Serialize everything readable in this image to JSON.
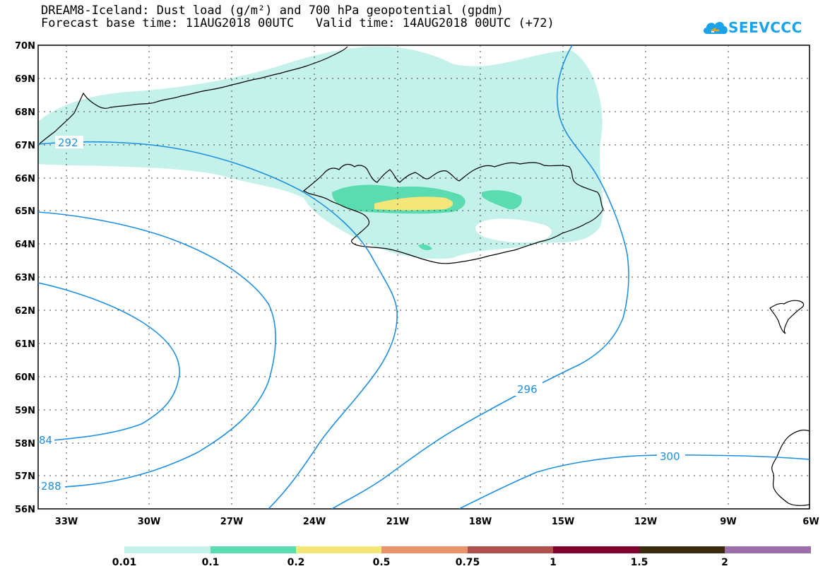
{
  "title": {
    "line1": "DREAM8-Iceland: Dust load (g/m²) and 700 hPa geopotential (gpdm)",
    "line2": "Forecast base time: 11AUG2018 00UTC   Valid time: 14AUG2018 00UTC (+72)"
  },
  "logo": {
    "text": "SEEVCCC",
    "icon": "cloud-icon"
  },
  "axes": {
    "lat_labels": [
      "70N",
      "69N",
      "68N",
      "67N",
      "66N",
      "65N",
      "64N",
      "63N",
      "62N",
      "61N",
      "60N",
      "59N",
      "58N",
      "57N",
      "56N"
    ],
    "lon_labels": [
      "33W",
      "30W",
      "27W",
      "24W",
      "21W",
      "18W",
      "15W",
      "12W",
      "9W",
      "6W"
    ]
  },
  "contours": {
    "labels": [
      "292",
      "296",
      "300",
      "288",
      "84"
    ]
  },
  "legend": {
    "labels": [
      "0.01",
      "0.1",
      "0.2",
      "0.5",
      "0.75",
      "1",
      "1.5",
      "2"
    ],
    "colors": [
      "#c4f1ea",
      "#5bdcb0",
      "#f5e67a",
      "#e8946a",
      "#b0504c",
      "#800030",
      "#3a2a10",
      "#9b70a8"
    ]
  }
}
